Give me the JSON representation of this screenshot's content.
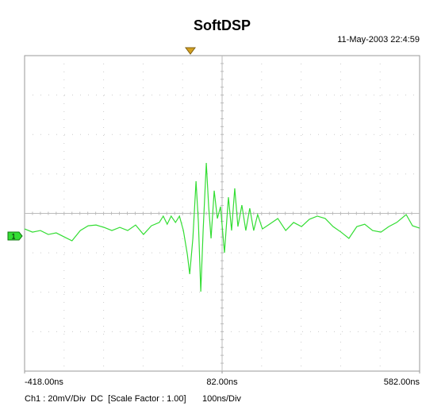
{
  "chart_data": {
    "type": "line",
    "title": "SoftDSP",
    "timestamp": "11-May-2003 22:4:59",
    "channel_marker": "1",
    "footer": {
      "channel": "Ch1 : 20mV/Div  DC  [Scale Factor : 1.00]",
      "timebase": "100ns/Div"
    },
    "xlim": [
      -418,
      582
    ],
    "ylim": [
      -68.5,
      91.5
    ],
    "xticks": [
      {
        "value": -418,
        "label": "-418.00ns"
      },
      {
        "value": 82,
        "label": "82.00ns"
      },
      {
        "value": 582,
        "label": "582.00ns"
      }
    ],
    "grid": true,
    "x": [
      -418,
      -398,
      -378,
      -358,
      -338,
      -318,
      -298,
      -277,
      -257,
      -237,
      -217,
      -197,
      -177,
      -157,
      -137,
      -117,
      -97,
      -77,
      -67,
      -57,
      -47,
      -36,
      -26,
      -16,
      -6,
      0,
      8,
      16,
      22,
      28,
      34,
      42,
      48,
      54,
      62,
      70,
      78,
      88,
      98,
      106,
      114,
      122,
      132,
      142,
      152,
      162,
      172,
      184,
      202,
      223,
      243,
      263,
      283,
      303,
      323,
      343,
      363,
      383,
      403,
      423,
      443,
      463,
      484,
      504,
      524,
      548,
      564,
      582
    ],
    "series": [
      {
        "color": "#33dd33",
        "values": [
          3.6,
          2.0,
          2.8,
          0.8,
          1.6,
          -0.4,
          -2.4,
          2.8,
          5.2,
          5.6,
          4.4,
          2.8,
          4.4,
          2.8,
          5.6,
          0.8,
          5.2,
          6.9,
          10.1,
          6.0,
          10.1,
          6.9,
          10.1,
          2.8,
          -9.3,
          -19.3,
          -1.2,
          27.8,
          6.9,
          -28.2,
          2.8,
          37.1,
          14.9,
          -1.2,
          23.0,
          8.9,
          14.9,
          -8.5,
          19.7,
          2.8,
          24.2,
          4.8,
          15.7,
          2.8,
          14.1,
          2.8,
          10.9,
          3.6,
          6.0,
          8.9,
          2.8,
          6.9,
          4.8,
          8.5,
          10.1,
          8.9,
          4.8,
          2.0,
          -1.2,
          4.8,
          6.0,
          2.8,
          2.0,
          4.8,
          6.9,
          10.9,
          5.2,
          4.0
        ]
      }
    ]
  }
}
